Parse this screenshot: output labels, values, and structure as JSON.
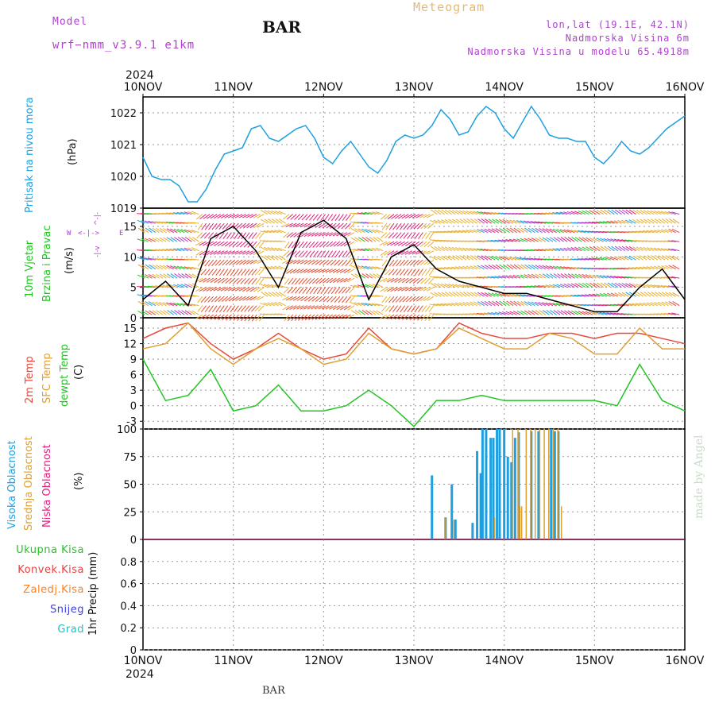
{
  "header": {
    "model_label": "Model",
    "model_name": "wrf−nmm_v3.9.1  e1km",
    "station": "BAR",
    "meteogram": "Meteogram",
    "lonlat": "lon,lat (19.1E, 42.1N)",
    "elevation": "Nadmorska Visina 6m",
    "model_elevation": "Nadmorska Visina u modelu 65.4918m",
    "footer_station": "BAR",
    "watermark": "made by Angel"
  },
  "time_axis": {
    "year": "2024",
    "ticks": [
      "10NOV",
      "11NOV",
      "12NOV",
      "13NOV",
      "14NOV",
      "15NOV",
      "16NOV"
    ]
  },
  "panels": {
    "pressure": {
      "title": "Pritisak na nivou mora",
      "unit": "(hPa)"
    },
    "wind": {
      "title": "10m Vjetar",
      "title2": "Brzina i Pravac",
      "unit": "(m/s)",
      "compass_w": "W",
      "compass_e": "E",
      "compass_n": "N",
      "compass_s": "S"
    },
    "temp": {
      "t2m": "2m Temp",
      "sfc": "SFC Temp",
      "dew": "dewpt Temp",
      "unit": "(C)"
    },
    "cloud": {
      "high": "Visoka Oblacnost",
      "mid": "Srednja Oblacnost",
      "low": "Niska Oblacnost",
      "unit": "(%)"
    },
    "precip": {
      "unit": "1hr Precip (mm)",
      "total": "Ukupna Kisa",
      "conv": "Konvek.Kisa",
      "frz": "Zaledj.Kisa",
      "snow": "Snijeg",
      "grad": "Grad"
    }
  },
  "colors": {
    "pressure": "#1e9fe0",
    "t2m": "#e8483c",
    "sfc": "#e0a030",
    "dew": "#22c422",
    "high": "#1e9fe0",
    "mid": "#e0a030",
    "low": "#e0207a",
    "purple": "#b040d0",
    "snow": "#4040e0",
    "grad": "#20c0c0",
    "conv": "#e84040",
    "frz": "#ff8020",
    "total": "#22c422"
  },
  "chart_data": [
    {
      "type": "line",
      "name": "pressure",
      "ylabel": "(hPa)",
      "ylim": [
        1019,
        1022.5
      ],
      "yticks": [
        1019,
        1020,
        1021,
        1022
      ],
      "x": [
        0,
        0.1,
        0.2,
        0.3,
        0.4,
        0.5,
        0.6,
        0.7,
        0.8,
        0.9,
        1.0,
        1.1,
        1.2,
        1.3,
        1.4,
        1.5,
        1.6,
        1.7,
        1.8,
        1.9,
        2.0,
        2.1,
        2.2,
        2.3,
        2.4,
        2.5,
        2.6,
        2.7,
        2.8,
        2.9,
        3.0,
        3.1,
        3.2,
        3.3,
        3.4,
        3.5,
        3.6,
        3.7,
        3.8,
        3.9,
        4.0,
        4.1,
        4.2,
        4.3,
        4.4,
        4.5,
        4.6,
        4.7,
        4.8,
        4.9,
        5.0,
        5.1,
        5.2,
        5.3,
        5.4,
        5.5,
        5.6,
        5.7,
        5.8,
        5.9,
        6.0
      ],
      "values": [
        1020.6,
        1020.0,
        1019.9,
        1019.9,
        1019.7,
        1019.2,
        1019.2,
        1019.6,
        1020.2,
        1020.7,
        1020.8,
        1020.9,
        1021.5,
        1021.6,
        1021.2,
        1021.1,
        1021.3,
        1021.5,
        1021.6,
        1021.2,
        1020.6,
        1020.4,
        1020.8,
        1021.1,
        1020.7,
        1020.3,
        1020.1,
        1020.5,
        1021.1,
        1021.3,
        1021.2,
        1021.3,
        1021.6,
        1022.1,
        1021.8,
        1021.3,
        1021.4,
        1021.9,
        1022.2,
        1022.0,
        1021.5,
        1021.2,
        1021.7,
        1022.2,
        1021.8,
        1021.3,
        1021.2,
        1021.2,
        1021.1,
        1021.1,
        1020.6,
        1020.4,
        1020.7,
        1021.1,
        1020.8,
        1020.7,
        1020.9,
        1021.2,
        1021.5,
        1021.7,
        1021.9
      ]
    },
    {
      "type": "line",
      "name": "wind",
      "ylabel": "(m/s)",
      "ylim": [
        0,
        18
      ],
      "yticks": [
        0,
        5,
        10,
        15
      ],
      "x": [
        0,
        0.25,
        0.5,
        0.75,
        1.0,
        1.25,
        1.5,
        1.75,
        2.0,
        2.25,
        2.5,
        2.75,
        3.0,
        3.25,
        3.5,
        3.75,
        4.0,
        4.25,
        4.5,
        4.75,
        5.0,
        5.25,
        5.5,
        5.75,
        6.0
      ],
      "values": [
        3,
        6,
        2,
        13,
        15,
        11,
        5,
        14,
        16,
        13,
        3,
        10,
        12,
        8,
        6,
        5,
        4,
        4,
        3,
        2,
        1,
        1,
        5,
        8,
        3
      ]
    },
    {
      "type": "line",
      "name": "temperature",
      "ylabel": "(C)",
      "ylim": [
        -4.5,
        17
      ],
      "yticks": [
        -3,
        0,
        3,
        6,
        9,
        12,
        15
      ],
      "x": [
        0,
        0.25,
        0.5,
        0.75,
        1.0,
        1.25,
        1.5,
        1.75,
        2.0,
        2.25,
        2.5,
        2.75,
        3.0,
        3.25,
        3.5,
        3.75,
        4.0,
        4.25,
        4.5,
        4.75,
        5.0,
        5.25,
        5.5,
        5.75,
        6.0
      ],
      "series": [
        {
          "name": "2m Temp",
          "values": [
            13,
            15,
            16,
            12,
            9,
            11,
            14,
            11,
            9,
            10,
            15,
            11,
            10,
            11,
            16,
            14,
            13,
            13,
            14,
            14,
            13,
            14,
            14,
            13,
            12
          ]
        },
        {
          "name": "SFC Temp",
          "values": [
            11,
            12,
            16,
            11,
            8,
            11,
            13,
            11,
            8,
            9,
            14,
            11,
            10,
            11,
            15,
            13,
            11,
            11,
            14,
            13,
            10,
            10,
            15,
            11,
            11
          ]
        },
        {
          "name": "dewpt Temp",
          "values": [
            9,
            1,
            2,
            7,
            -1,
            0,
            4,
            -1,
            -1,
            0,
            3,
            0,
            -4,
            1,
            1,
            2,
            1,
            1,
            1,
            1,
            1,
            0,
            8,
            1,
            -1
          ]
        }
      ]
    },
    {
      "type": "bar",
      "name": "cloud",
      "ylabel": "(%)",
      "ylim": [
        0,
        100
      ],
      "yticks": [
        0,
        25,
        50,
        75,
        100
      ],
      "series": [
        {
          "name": "Visoka Oblacnost",
          "x": [
            3.2,
            3.35,
            3.42,
            3.46,
            3.65,
            3.7,
            3.74,
            3.76,
            3.8,
            3.85,
            3.88,
            3.92,
            3.95,
            4.0,
            4.04,
            4.08,
            4.12,
            4.16,
            4.3,
            4.38,
            4.52,
            4.56,
            4.6
          ],
          "values": [
            58,
            20,
            50,
            18,
            15,
            80,
            60,
            100,
            100,
            92,
            92,
            100,
            100,
            100,
            75,
            70,
            92,
            97,
            98,
            98,
            100,
            98,
            98
          ]
        },
        {
          "name": "Srednja Oblacnost",
          "x": [
            3.35,
            3.45,
            3.9,
            4.1,
            4.16,
            4.18,
            4.2,
            4.25,
            4.3,
            4.35,
            4.4,
            4.45,
            4.5,
            4.55,
            4.6,
            4.64
          ],
          "values": [
            20,
            18,
            20,
            100,
            100,
            30,
            30,
            100,
            100,
            100,
            100,
            100,
            100,
            100,
            100,
            30
          ]
        },
        {
          "name": "Niska Oblacnost",
          "x": [],
          "values": []
        }
      ]
    },
    {
      "type": "bar",
      "name": "precip",
      "ylabel": "1hr Precip (mm)",
      "ylim": [
        0,
        1
      ],
      "yticks": [
        0,
        0.2,
        0.4,
        0.6,
        0.8
      ],
      "series": [
        {
          "name": "Ukupna Kisa",
          "values": []
        },
        {
          "name": "Konvek.Kisa",
          "values": []
        },
        {
          "name": "Zaledj.Kisa",
          "values": []
        },
        {
          "name": "Snijeg",
          "values": []
        },
        {
          "name": "Grad",
          "values": []
        }
      ]
    }
  ]
}
